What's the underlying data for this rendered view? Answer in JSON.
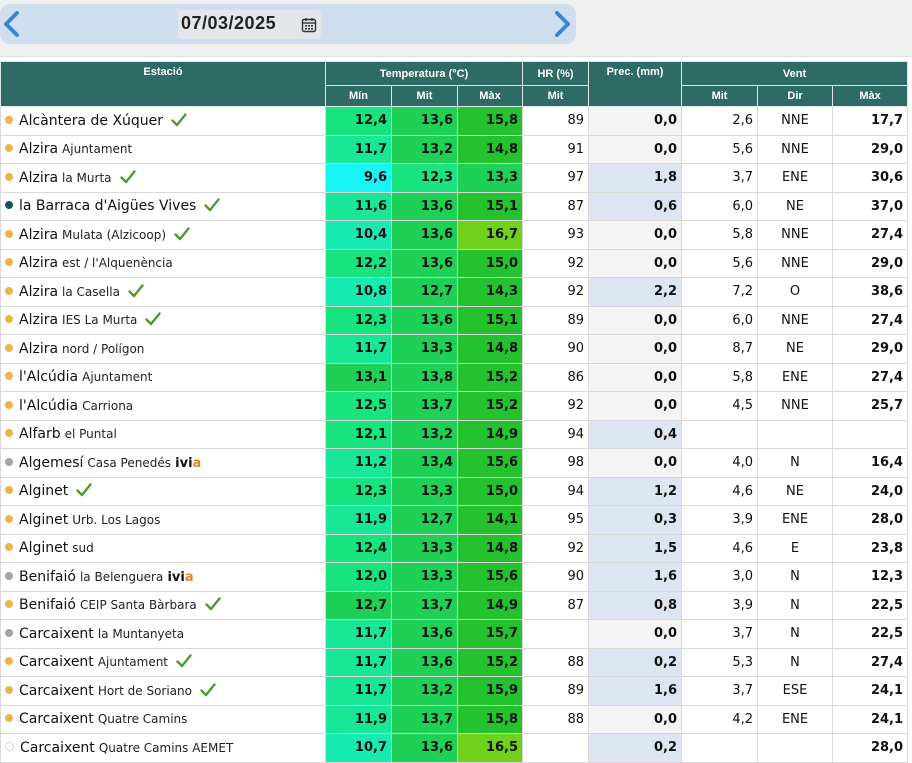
{
  "header": {
    "date": "07/03/2025",
    "prev_icon": "chevron-left-icon",
    "next_icon": "chevron-right-icon",
    "calendar_icon": "calendar-icon"
  },
  "table": {
    "groups": {
      "station": "Estació",
      "temperature": "Temperatura (°C)",
      "humidity": "HR (%)",
      "precipitation": "Prec. (mm)",
      "wind": "Vent"
    },
    "subheaders": {
      "t_min": "Mín",
      "t_mit": "Mit",
      "t_max": "Màx",
      "hr_mit": "Mit",
      "w_mit": "Mit",
      "w_dir": "Dir",
      "w_max": "Màx"
    },
    "colors": {
      "header_bg": "#2f6b66",
      "dot_yellow": "#e8b54a",
      "dot_gray": "#a4a4a4",
      "dot_teal": "#0e5a54",
      "check": "#4f9a2e",
      "rain_bg": "#dde5f3"
    },
    "rows": [
      {
        "name": "Alcàntera de Xúquer",
        "sub": "",
        "dot": "yellow",
        "check": true,
        "ivia": false,
        "tmin": "12,4",
        "tmit": "13,6",
        "tmax": "15,8",
        "tmin_bg": "#18e47f",
        "tmit_bg": "#1ed055",
        "tmax_bg": "#24c22f",
        "hr": "89",
        "prec": "0,0",
        "wmit": "2,6",
        "wdir": "NNE",
        "wmax": "17,7"
      },
      {
        "name": "Alzira",
        "sub": "Ajuntament",
        "dot": "yellow",
        "check": false,
        "ivia": false,
        "tmin": "11,7",
        "tmit": "13,2",
        "tmax": "14,8",
        "tmin_bg": "#18e797",
        "tmit_bg": "#1ed055",
        "tmax_bg": "#24c22f",
        "hr": "91",
        "prec": "0,0",
        "wmit": "5,6",
        "wdir": "NNE",
        "wmax": "29,0"
      },
      {
        "name": "Alzira",
        "sub": "la Murta",
        "dot": "yellow",
        "check": true,
        "ivia": false,
        "tmin": "9,6",
        "tmit": "12,3",
        "tmax": "13,3",
        "tmin_bg": "#18f3f3",
        "tmit_bg": "#18e47f",
        "tmax_bg": "#1ed055",
        "hr": "97",
        "prec": "1,8",
        "wmit": "3,7",
        "wdir": "ENE",
        "wmax": "30,6"
      },
      {
        "name": "la Barraca d'Aigües Vives",
        "sub": "",
        "dot": "teal",
        "check": true,
        "ivia": false,
        "tmin": "11,6",
        "tmit": "13,6",
        "tmax": "15,1",
        "tmin_bg": "#18e797",
        "tmit_bg": "#1ed055",
        "tmax_bg": "#24c22f",
        "hr": "87",
        "prec": "0,6",
        "wmit": "6,0",
        "wdir": "NE",
        "wmax": "37,0"
      },
      {
        "name": "Alzira",
        "sub": "Mulata (Alzicoop)",
        "dot": "yellow",
        "check": true,
        "ivia": false,
        "tmin": "10,4",
        "tmit": "13,6",
        "tmax": "16,7",
        "tmin_bg": "#18ebb2",
        "tmit_bg": "#1ed055",
        "tmax_bg": "#6fd11b",
        "hr": "93",
        "prec": "0,0",
        "wmit": "5,8",
        "wdir": "NNE",
        "wmax": "27,4"
      },
      {
        "name": "Alzira",
        "sub": "est / l'Alquenència",
        "dot": "yellow",
        "check": false,
        "ivia": false,
        "tmin": "12,2",
        "tmit": "13,6",
        "tmax": "15,0",
        "tmin_bg": "#18e47f",
        "tmit_bg": "#1ed055",
        "tmax_bg": "#24c22f",
        "hr": "92",
        "prec": "0,0",
        "wmit": "5,6",
        "wdir": "NNE",
        "wmax": "29,0"
      },
      {
        "name": "Alzira",
        "sub": "la Casella",
        "dot": "yellow",
        "check": true,
        "ivia": false,
        "tmin": "10,8",
        "tmit": "12,7",
        "tmax": "14,3",
        "tmin_bg": "#18ebb2",
        "tmit_bg": "#1ed055",
        "tmax_bg": "#24c22f",
        "hr": "92",
        "prec": "2,2",
        "wmit": "7,2",
        "wdir": "O",
        "wmax": "38,6"
      },
      {
        "name": "Alzira",
        "sub": "IES La Murta",
        "dot": "yellow",
        "check": true,
        "ivia": false,
        "tmin": "12,3",
        "tmit": "13,6",
        "tmax": "15,1",
        "tmin_bg": "#18e47f",
        "tmit_bg": "#1ed055",
        "tmax_bg": "#24c22f",
        "hr": "89",
        "prec": "0,0",
        "wmit": "6,0",
        "wdir": "NNE",
        "wmax": "27,4"
      },
      {
        "name": "Alzira",
        "sub": "nord / Polígon",
        "dot": "yellow",
        "check": false,
        "ivia": false,
        "tmin": "11,7",
        "tmit": "13,3",
        "tmax": "14,8",
        "tmin_bg": "#18e797",
        "tmit_bg": "#1ed055",
        "tmax_bg": "#24c22f",
        "hr": "90",
        "prec": "0,0",
        "wmit": "8,7",
        "wdir": "NE",
        "wmax": "29,0"
      },
      {
        "name": "l'Alcúdia",
        "sub": "Ajuntament",
        "dot": "yellow",
        "check": false,
        "ivia": false,
        "tmin": "13,1",
        "tmit": "13,8",
        "tmax": "15,2",
        "tmin_bg": "#1ed055",
        "tmit_bg": "#1ed055",
        "tmax_bg": "#24c22f",
        "hr": "86",
        "prec": "0,0",
        "wmit": "5,8",
        "wdir": "ENE",
        "wmax": "27,4"
      },
      {
        "name": "l'Alcúdia",
        "sub": "Carriona",
        "dot": "yellow",
        "check": false,
        "ivia": false,
        "tmin": "12,5",
        "tmit": "13,7",
        "tmax": "15,2",
        "tmin_bg": "#18e47f",
        "tmit_bg": "#1ed055",
        "tmax_bg": "#24c22f",
        "hr": "92",
        "prec": "0,0",
        "wmit": "4,5",
        "wdir": "NNE",
        "wmax": "25,7"
      },
      {
        "name": "Alfarb",
        "sub": "el Puntal",
        "dot": "yellow",
        "check": false,
        "ivia": false,
        "tmin": "12,1",
        "tmit": "13,2",
        "tmax": "14,9",
        "tmin_bg": "#18e47f",
        "tmit_bg": "#1ed055",
        "tmax_bg": "#24c22f",
        "hr": "94",
        "prec": "0,4",
        "wmit": "",
        "wdir": "",
        "wmax": ""
      },
      {
        "name": "Algemesí",
        "sub": "Casa Penedés",
        "dot": "gray",
        "check": false,
        "ivia": true,
        "tmin": "11,2",
        "tmit": "13,4",
        "tmax": "15,6",
        "tmin_bg": "#18e797",
        "tmit_bg": "#1ed055",
        "tmax_bg": "#24c22f",
        "hr": "98",
        "prec": "0,0",
        "wmit": "4,0",
        "wdir": "N",
        "wmax": "16,4"
      },
      {
        "name": "Alginet",
        "sub": "",
        "dot": "yellow",
        "check": true,
        "ivia": false,
        "tmin": "12,3",
        "tmit": "13,3",
        "tmax": "15,0",
        "tmin_bg": "#18e47f",
        "tmit_bg": "#1ed055",
        "tmax_bg": "#24c22f",
        "hr": "94",
        "prec": "1,2",
        "wmit": "4,6",
        "wdir": "NE",
        "wmax": "24,0"
      },
      {
        "name": "Alginet",
        "sub": "Urb. Los Lagos",
        "dot": "yellow",
        "check": false,
        "ivia": false,
        "tmin": "11,9",
        "tmit": "12,7",
        "tmax": "14,1",
        "tmin_bg": "#18e797",
        "tmit_bg": "#1ed055",
        "tmax_bg": "#24c22f",
        "hr": "95",
        "prec": "0,3",
        "wmit": "3,9",
        "wdir": "ENE",
        "wmax": "28,0"
      },
      {
        "name": "Alginet",
        "sub": "sud",
        "dot": "yellow",
        "check": false,
        "ivia": false,
        "tmin": "12,4",
        "tmit": "13,3",
        "tmax": "14,8",
        "tmin_bg": "#18e47f",
        "tmit_bg": "#1ed055",
        "tmax_bg": "#24c22f",
        "hr": "92",
        "prec": "1,5",
        "wmit": "4,6",
        "wdir": "E",
        "wmax": "23,8"
      },
      {
        "name": "Benifaió",
        "sub": "la Belenguera",
        "dot": "gray",
        "check": false,
        "ivia": true,
        "tmin": "12,0",
        "tmit": "13,3",
        "tmax": "15,6",
        "tmin_bg": "#18e47f",
        "tmit_bg": "#1ed055",
        "tmax_bg": "#24c22f",
        "hr": "90",
        "prec": "1,6",
        "wmit": "3,0",
        "wdir": "N",
        "wmax": "12,3"
      },
      {
        "name": "Benifaió",
        "sub": "CEIP Santa Bàrbara",
        "dot": "yellow",
        "check": true,
        "ivia": false,
        "tmin": "12,7",
        "tmit": "13,7",
        "tmax": "14,9",
        "tmin_bg": "#1ed055",
        "tmit_bg": "#1ed055",
        "tmax_bg": "#24c22f",
        "hr": "87",
        "prec": "0,8",
        "wmit": "3,9",
        "wdir": "N",
        "wmax": "22,5"
      },
      {
        "name": "Carcaixent",
        "sub": "la Muntanyeta",
        "dot": "gray",
        "check": false,
        "ivia": false,
        "tmin": "11,7",
        "tmit": "13,6",
        "tmax": "15,7",
        "tmin_bg": "#18e797",
        "tmit_bg": "#1ed055",
        "tmax_bg": "#24c22f",
        "hr": "",
        "prec": "0,0",
        "wmit": "3,7",
        "wdir": "N",
        "wmax": "22,5"
      },
      {
        "name": "Carcaixent",
        "sub": "Ajuntament",
        "dot": "yellow",
        "check": true,
        "ivia": false,
        "tmin": "11,7",
        "tmit": "13,6",
        "tmax": "15,2",
        "tmin_bg": "#18e797",
        "tmit_bg": "#1ed055",
        "tmax_bg": "#24c22f",
        "hr": "88",
        "prec": "0,2",
        "wmit": "5,3",
        "wdir": "N",
        "wmax": "27,4"
      },
      {
        "name": "Carcaixent",
        "sub": "Hort de Soriano",
        "dot": "yellow",
        "check": true,
        "ivia": false,
        "tmin": "11,7",
        "tmit": "13,2",
        "tmax": "15,9",
        "tmin_bg": "#18e797",
        "tmit_bg": "#1ed055",
        "tmax_bg": "#24c22f",
        "hr": "89",
        "prec": "1,6",
        "wmit": "3,7",
        "wdir": "ESE",
        "wmax": "24,1"
      },
      {
        "name": "Carcaixent",
        "sub": "Quatre Camins",
        "dot": "yellow",
        "check": false,
        "ivia": false,
        "tmin": "11,9",
        "tmit": "13,7",
        "tmax": "15,8",
        "tmin_bg": "#18e797",
        "tmit_bg": "#1ed055",
        "tmax_bg": "#24c22f",
        "hr": "88",
        "prec": "0,0",
        "wmit": "4,2",
        "wdir": "ENE",
        "wmax": "24,1"
      },
      {
        "name": "Carcaixent",
        "sub": "Quatre Camins AEMET",
        "dot": "hollow",
        "check": false,
        "ivia": false,
        "tmin": "10,7",
        "tmit": "13,6",
        "tmax": "16,5",
        "tmin_bg": "#18ebb2",
        "tmit_bg": "#1ed055",
        "tmax_bg": "#6fd11b",
        "hr": "",
        "prec": "0,2",
        "wmit": "",
        "wdir": "",
        "wmax": "28,0"
      }
    ]
  }
}
